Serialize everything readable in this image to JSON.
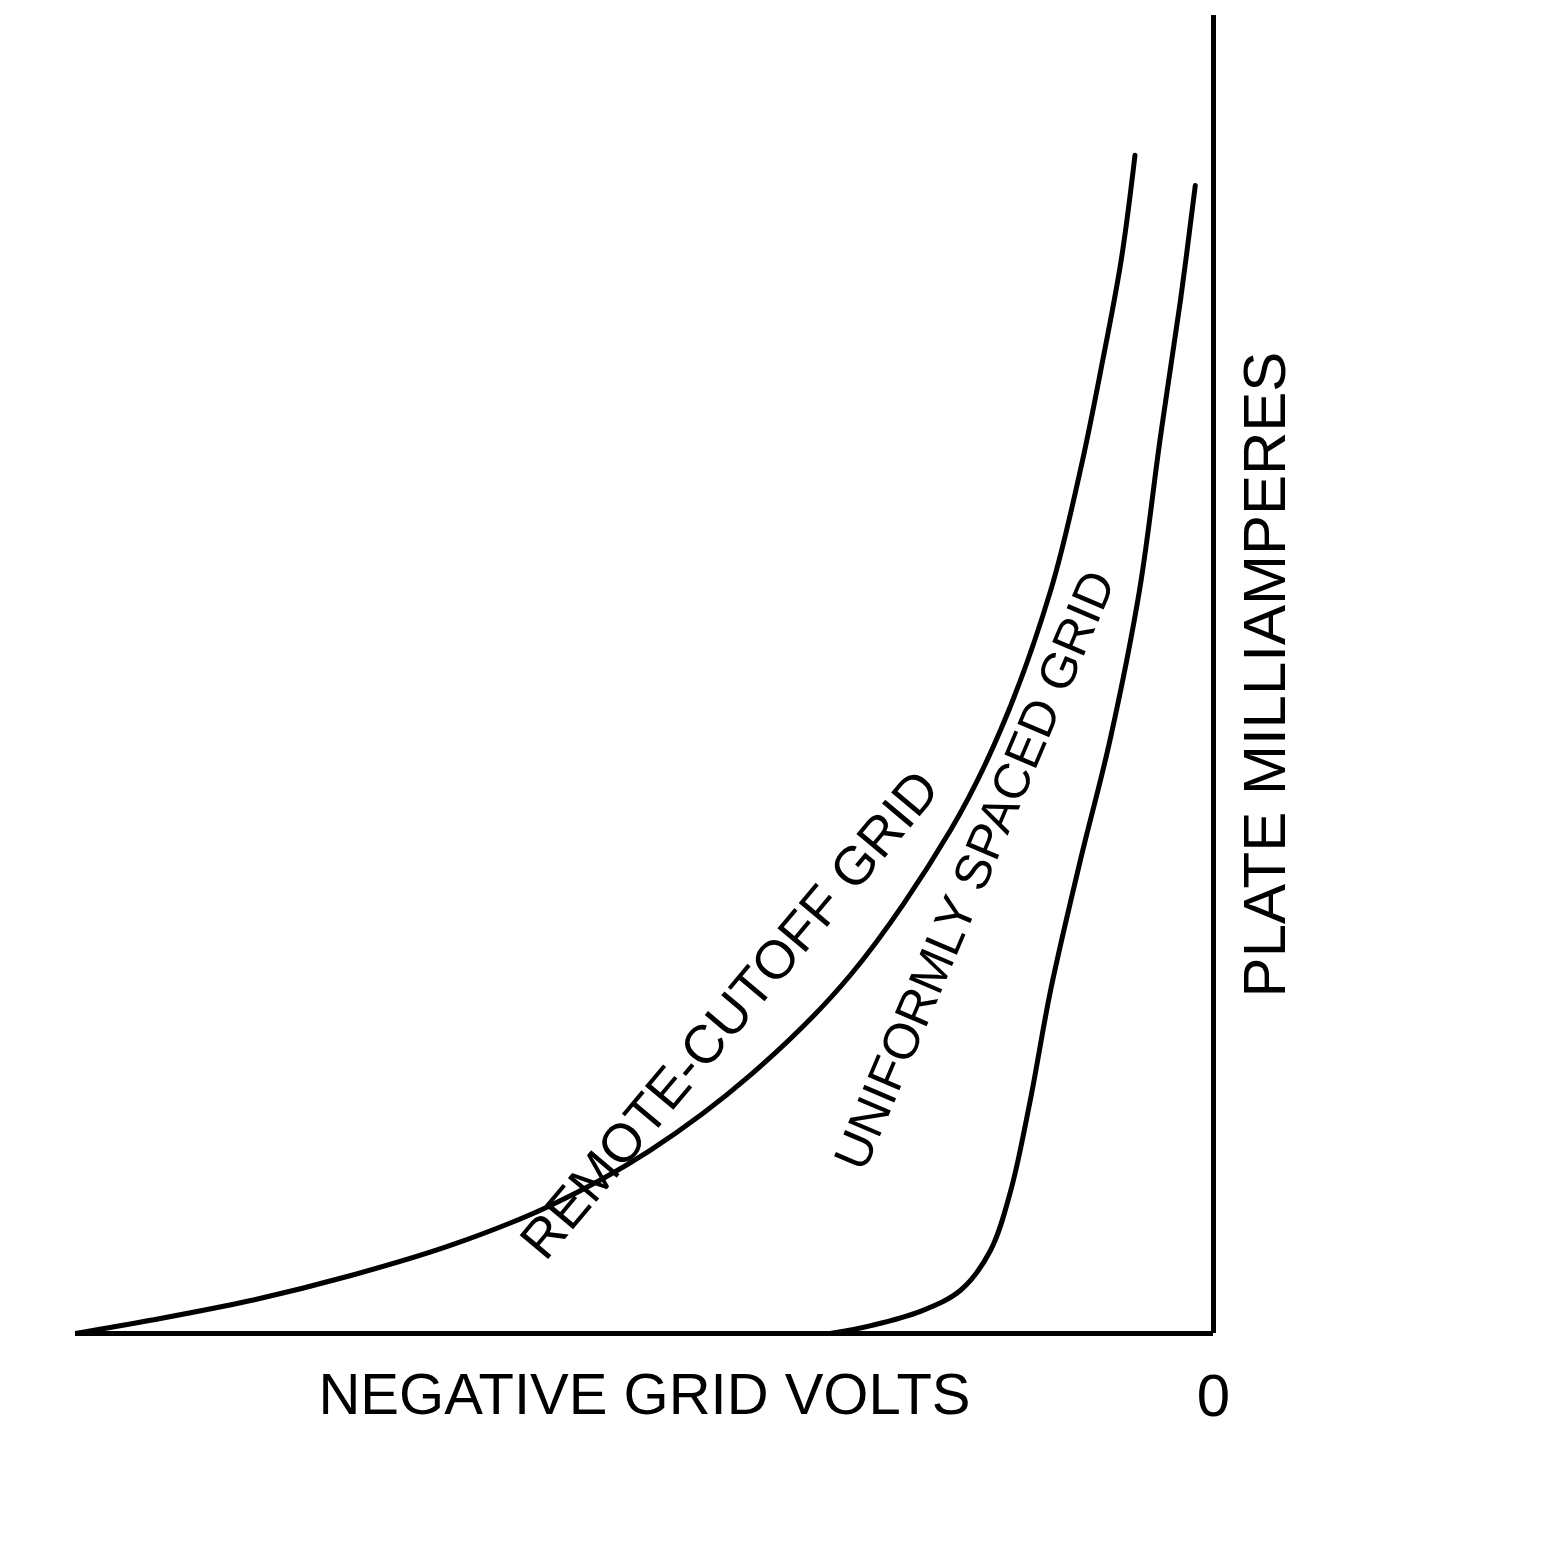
{
  "chart_data": {
    "type": "line",
    "x_label": "NEGATIVE GRID VOLTS",
    "y_label": "PLATE MILLIAMPERES",
    "xlim": [
      -100,
      0
    ],
    "ylim": [
      0,
      100
    ],
    "xticks": [
      0
    ],
    "tick_labels": "x",
    "grid": false,
    "series": [
      {
        "name": "REMOTE-CUTOFF GRID",
        "color": "#000000",
        "x": [
          -100,
          -93.4,
          -84.6,
          -75.8,
          -67.0,
          -58.3,
          -49.5,
          -40.7,
          -31.9,
          -23.1,
          -18.7,
          -14.3,
          -11.7,
          -9.9,
          -8.1,
          -6.9
        ],
        "values": [
          0,
          1.0,
          2.5,
          4.4,
          6.7,
          9.7,
          13.9,
          19.6,
          27.2,
          38.2,
          45.8,
          56.4,
          65.5,
          73.1,
          81.5,
          89.4
        ]
      },
      {
        "name": "UNIFORMLY SPACED GRID",
        "color": "#000000",
        "x": [
          -33.7,
          -30.1,
          -25.7,
          -22.2,
          -19.6,
          -17.8,
          -16.1,
          -14.3,
          -11.7,
          -9.1,
          -6.5,
          -4.7,
          -2.9,
          -1.6
        ],
        "values": [
          0,
          0.6,
          1.7,
          3.3,
          6.3,
          10.9,
          17.7,
          26.1,
          35.9,
          45.0,
          56.4,
          67.8,
          78.4,
          87.1
        ]
      }
    ]
  }
}
